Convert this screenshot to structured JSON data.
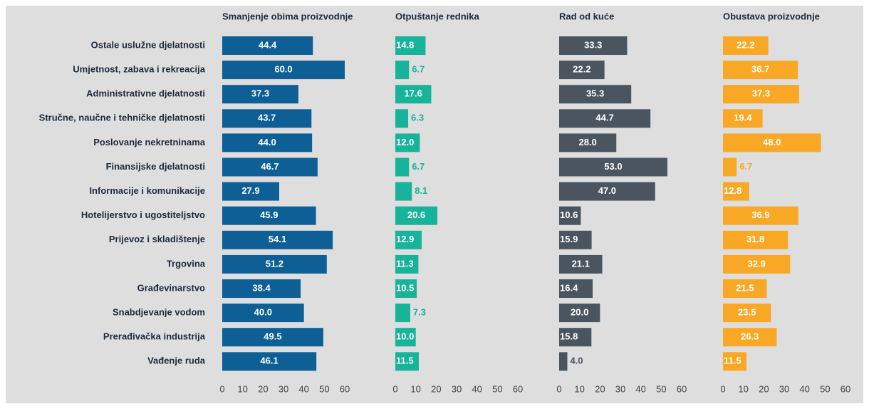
{
  "chart_data": {
    "type": "bar",
    "orientation": "horizontal",
    "categories": [
      "Ostale uslužne djelatnosti",
      "Umjetnost, zabava i rekreacija",
      "Administrativne djelatnosti",
      "Stručne, naučne i tehničke djelatnosti",
      "Poslovanje nekretninama",
      "Finansijske djelatnosti",
      "Informacije i komunikacije",
      "Hotelijerstvo i ugostiteljstvo",
      "Prijevoz i skladištenje",
      "Trgovina",
      "Građevinarstvo",
      "Snabdjevanje vodom",
      "Prerađivačka industrija",
      "Vađenje ruda"
    ],
    "series": [
      {
        "name": "Smanjenje obima proizvodnje",
        "color": "#0d5f95",
        "values": [
          44.4,
          60.0,
          37.3,
          43.7,
          44.0,
          46.7,
          27.9,
          45.9,
          54.1,
          51.2,
          38.4,
          40.0,
          49.5,
          46.1
        ],
        "value_labels": [
          "44.4",
          "60.0",
          "37.3",
          "43.7",
          "44.0",
          "46.7",
          "27.9",
          "45.9",
          "54.1",
          "51.2",
          "38.4",
          "40.0",
          "49.5",
          "46.1"
        ]
      },
      {
        "name": "Otpuštanje rednika",
        "color": "#17b39a",
        "values": [
          14.8,
          6.7,
          17.6,
          6.3,
          12.0,
          6.7,
          8.1,
          20.6,
          12.9,
          11.3,
          10.5,
          7.3,
          10.0,
          11.5
        ],
        "value_labels": [
          "14.8",
          "6.7",
          "17.6",
          "6.3",
          "12.0",
          "6.7",
          "8.1",
          "20.6",
          "12.9",
          "11.3",
          "10.5",
          "7.3",
          "10.0",
          "11.5"
        ]
      },
      {
        "name": "Rad od kuće",
        "color": "#4a5560",
        "values": [
          33.3,
          22.2,
          35.3,
          44.7,
          28.0,
          53.0,
          47.0,
          10.6,
          15.9,
          21.1,
          16.4,
          20.0,
          15.8,
          4.0
        ],
        "value_labels": [
          "33.3",
          "22.2",
          "35.3",
          "44.7",
          "28.0",
          "53.0",
          "47.0",
          "10.6",
          "15.9",
          "21.1",
          "16.4",
          "20.0",
          "15.8",
          "4.0"
        ]
      },
      {
        "name": "Obustava proizvodnje",
        "color": "#f9a825",
        "values": [
          22.2,
          36.7,
          37.3,
          19.4,
          48.0,
          6.7,
          12.8,
          36.9,
          31.8,
          32.9,
          21.5,
          23.5,
          26.3,
          11.5
        ],
        "value_labels": [
          "22.2",
          "36.7",
          "37.3",
          "19.4",
          "48.0",
          "6.7",
          "12.8",
          "36.9",
          "31.8",
          "32.9",
          "21.5",
          "23.5",
          "26.3",
          "11.5"
        ]
      }
    ],
    "xlim": [
      0,
      60
    ],
    "xticks": [
      0,
      10,
      20,
      30,
      40,
      50,
      60
    ]
  }
}
